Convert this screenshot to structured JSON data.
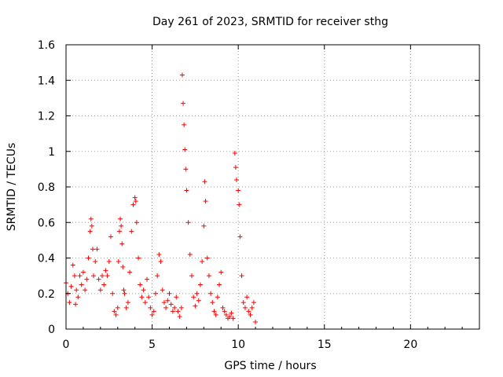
{
  "chart_data": {
    "type": "scatter",
    "title": "Day 261 of 2023, SRMTID for receiver sthg",
    "xlabel": "GPS time / hours",
    "ylabel": "SRMTID / TECUs",
    "xlim": [
      0,
      24
    ],
    "ylim": [
      0,
      1.6
    ],
    "xticks": [
      0,
      5,
      10,
      15,
      20
    ],
    "xtick_labels": [
      "0",
      "5",
      "10",
      "15",
      "20"
    ],
    "yticks": [
      0,
      0.2,
      0.4,
      0.6,
      0.8,
      1,
      1.2,
      1.4,
      1.6
    ],
    "ytick_labels": [
      "0",
      "0.2",
      "0.4",
      "0.6",
      "0.8",
      "1",
      "1.2",
      "1.4",
      "1.6"
    ],
    "grid": true,
    "marker": "+",
    "series": [
      {
        "name": "sthg",
        "color": "#ff0000",
        "x": [
          0.0,
          0.1,
          0.2,
          0.3,
          0.4,
          0.5,
          0.55,
          0.6,
          0.7,
          0.8,
          0.9,
          1.0,
          1.1,
          1.2,
          1.3,
          1.4,
          1.45,
          1.5,
          1.55,
          1.6,
          1.7,
          1.8,
          1.9,
          2.0,
          2.1,
          2.2,
          2.3,
          2.4,
          2.5,
          2.6,
          2.7,
          2.8,
          2.9,
          3.0,
          3.05,
          3.1,
          3.15,
          3.2,
          3.25,
          3.3,
          3.35,
          3.4,
          3.5,
          3.6,
          3.7,
          3.8,
          3.9,
          4.0,
          4.05,
          4.1,
          4.2,
          4.3,
          4.4,
          4.5,
          4.6,
          4.7,
          4.8,
          4.9,
          5.0,
          5.1,
          5.2,
          5.3,
          5.4,
          5.5,
          5.6,
          5.7,
          5.8,
          5.9,
          6.0,
          6.1,
          6.2,
          6.3,
          6.4,
          6.5,
          6.6,
          6.7,
          6.75,
          6.8,
          6.85,
          6.9,
          6.95,
          7.0,
          7.1,
          7.2,
          7.3,
          7.4,
          7.5,
          7.6,
          7.7,
          7.8,
          7.9,
          8.0,
          8.05,
          8.1,
          8.2,
          8.3,
          8.4,
          8.5,
          8.6,
          8.7,
          8.8,
          8.9,
          9.0,
          9.1,
          9.2,
          9.3,
          9.4,
          9.5,
          9.6,
          9.7,
          9.8,
          9.85,
          9.9,
          10.0,
          10.05,
          10.1,
          10.2,
          10.3,
          10.4,
          10.5,
          10.6,
          10.7,
          10.8,
          10.9,
          11.0
        ],
        "y": [
          0.26,
          0.2,
          0.15,
          0.24,
          0.36,
          0.3,
          0.14,
          0.22,
          0.18,
          0.3,
          0.25,
          0.32,
          0.22,
          0.28,
          0.4,
          0.55,
          0.62,
          0.58,
          0.45,
          0.3,
          0.38,
          0.45,
          0.28,
          0.22,
          0.3,
          0.25,
          0.33,
          0.3,
          0.38,
          0.52,
          0.2,
          0.1,
          0.08,
          0.12,
          0.38,
          0.55,
          0.62,
          0.58,
          0.48,
          0.35,
          0.22,
          0.2,
          0.12,
          0.15,
          0.32,
          0.55,
          0.7,
          0.74,
          0.72,
          0.6,
          0.4,
          0.25,
          0.18,
          0.22,
          0.15,
          0.28,
          0.18,
          0.12,
          0.08,
          0.1,
          0.2,
          0.3,
          0.42,
          0.38,
          0.22,
          0.15,
          0.12,
          0.16,
          0.2,
          0.14,
          0.1,
          0.12,
          0.18,
          0.1,
          0.07,
          0.12,
          1.43,
          1.27,
          1.15,
          1.01,
          0.9,
          0.78,
          0.6,
          0.42,
          0.3,
          0.18,
          0.13,
          0.2,
          0.16,
          0.25,
          0.38,
          0.58,
          0.83,
          0.72,
          0.4,
          0.3,
          0.2,
          0.15,
          0.1,
          0.08,
          0.18,
          0.25,
          0.32,
          0.12,
          0.1,
          0.08,
          0.06,
          0.07,
          0.09,
          0.06,
          0.99,
          0.91,
          0.84,
          0.78,
          0.7,
          0.52,
          0.3,
          0.15,
          0.12,
          0.18,
          0.1,
          0.08,
          0.12,
          0.15,
          0.04
        ]
      }
    ]
  }
}
